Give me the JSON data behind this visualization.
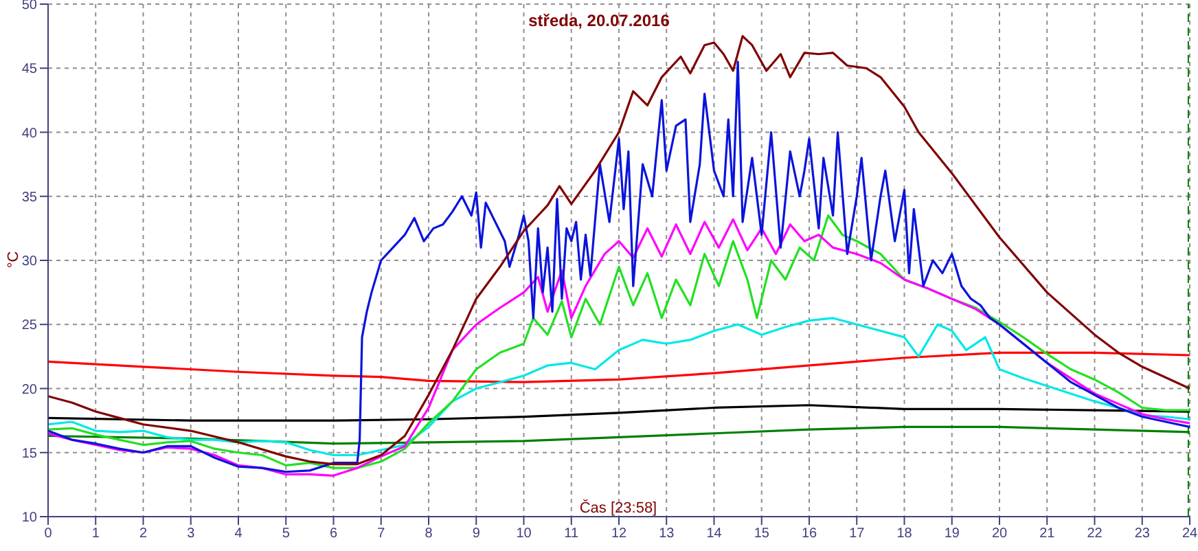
{
  "chart_data": {
    "type": "line",
    "title": "středa, 20.07.2016",
    "xlabel": "Čas [23:58]",
    "ylabel": "°C",
    "xlim": [
      0,
      24
    ],
    "xticks": [
      0,
      1,
      2,
      3,
      4,
      5,
      6,
      7,
      8,
      9,
      10,
      11,
      12,
      13,
      14,
      15,
      16,
      17,
      18,
      19,
      20,
      21,
      22,
      23,
      24
    ],
    "ylim": [
      10,
      50
    ],
    "yticks": [
      10,
      15,
      20,
      25,
      30,
      35,
      40,
      45,
      50
    ],
    "grid": true,
    "marker": "none",
    "line_style": "solid",
    "ref_lines": [
      {
        "axis": "x",
        "value": 23.97,
        "color": "#008000",
        "line_style": "dashed"
      }
    ],
    "series": [
      {
        "color": "#ff0000",
        "x": [
          0,
          2,
          4,
          6,
          7,
          8,
          10,
          12,
          14,
          16,
          18,
          20,
          22,
          24
        ],
        "values": [
          22.1,
          21.7,
          21.3,
          21.0,
          20.9,
          20.6,
          20.5,
          20.7,
          21.2,
          21.8,
          22.4,
          22.8,
          22.8,
          22.6
        ]
      },
      {
        "color": "#000000",
        "x": [
          0,
          3,
          6,
          8,
          10,
          12,
          14,
          16,
          18,
          20,
          22,
          24
        ],
        "values": [
          17.7,
          17.5,
          17.5,
          17.6,
          17.8,
          18.1,
          18.5,
          18.7,
          18.4,
          18.4,
          18.3,
          18.2
        ]
      },
      {
        "color": "#008000",
        "x": [
          0,
          3,
          6,
          8,
          10,
          12,
          14,
          16,
          18,
          20,
          22,
          24
        ],
        "values": [
          16.3,
          16.1,
          15.7,
          15.8,
          15.9,
          16.2,
          16.5,
          16.8,
          17.0,
          17.0,
          16.8,
          16.6
        ]
      },
      {
        "color": "#00e8e8",
        "x": [
          0,
          0.5,
          1,
          1.5,
          2,
          2.5,
          3,
          3.5,
          4,
          4.5,
          5,
          5.5,
          6,
          6.5,
          7,
          7.5,
          8,
          8.5,
          9,
          9.5,
          10,
          10.5,
          11,
          11.5,
          12,
          12.5,
          13,
          13.5,
          14,
          14.5,
          15,
          15.5,
          16,
          16.5,
          17,
          17.5,
          18,
          18.3,
          18.7,
          19,
          19.3,
          19.7,
          20,
          20.5,
          21,
          21.5,
          22,
          22.5,
          23,
          23.5,
          24
        ],
        "values": [
          17.2,
          17.4,
          16.7,
          16.6,
          16.7,
          16.2,
          16.0,
          16.0,
          15.8,
          15.9,
          15.8,
          15.2,
          14.8,
          14.8,
          15.2,
          15.6,
          17.0,
          19.0,
          20.0,
          20.5,
          21.0,
          21.8,
          22.0,
          21.5,
          23.0,
          23.8,
          23.5,
          23.8,
          24.5,
          25.0,
          24.2,
          24.8,
          25.3,
          25.5,
          25.0,
          24.5,
          24.0,
          22.5,
          25.0,
          24.5,
          23.0,
          24.0,
          21.5,
          20.8,
          20.2,
          19.6,
          19.0,
          18.5,
          17.9,
          17.8,
          17.6
        ]
      },
      {
        "color": "#22e022",
        "x": [
          0,
          0.5,
          1,
          1.5,
          2,
          2.5,
          3,
          3.5,
          4,
          4.5,
          5,
          5.5,
          6,
          6.5,
          7,
          7.5,
          8,
          8.5,
          9,
          9.5,
          10,
          10.2,
          10.5,
          10.8,
          11,
          11.3,
          11.6,
          12,
          12.3,
          12.6,
          12.9,
          13.2,
          13.5,
          13.8,
          14.1,
          14.4,
          14.7,
          14.9,
          15.2,
          15.5,
          15.8,
          16.1,
          16.4,
          16.7,
          17,
          17.5,
          18,
          18.5,
          19,
          19.5,
          20,
          20.5,
          21,
          21.5,
          22,
          22.5,
          23,
          23.5,
          24
        ],
        "values": [
          16.8,
          16.9,
          16.4,
          16.0,
          15.6,
          15.8,
          15.9,
          15.3,
          15.0,
          14.8,
          14.0,
          14.2,
          13.8,
          13.8,
          14.3,
          15.3,
          17.3,
          19.0,
          21.5,
          22.8,
          23.5,
          25.5,
          24.2,
          26.8,
          24.0,
          27.0,
          25.0,
          29.5,
          26.5,
          29.0,
          25.5,
          28.5,
          26.5,
          30.5,
          28.0,
          31.5,
          28.5,
          25.5,
          30.0,
          28.5,
          31.0,
          30.0,
          33.5,
          32.0,
          31.5,
          30.5,
          28.5,
          27.8,
          27.0,
          26.3,
          25.2,
          24.0,
          22.7,
          21.5,
          20.7,
          19.7,
          18.5,
          18.3,
          18.3
        ]
      },
      {
        "color": "#ff00ff",
        "x": [
          0,
          0.5,
          1,
          1.5,
          2,
          2.5,
          3,
          3.5,
          4,
          4.5,
          5,
          5.5,
          6,
          6.5,
          7,
          7.5,
          8,
          8.5,
          9,
          9.5,
          10,
          10.3,
          10.5,
          10.8,
          11,
          11.3,
          11.7,
          12,
          12.3,
          12.6,
          12.9,
          13.2,
          13.5,
          13.8,
          14.1,
          14.4,
          14.7,
          15,
          15.3,
          15.6,
          15.9,
          16.2,
          16.5,
          17,
          17.5,
          18,
          18.5,
          19,
          19.5,
          20,
          20.5,
          21,
          21.5,
          22,
          22.5,
          23,
          23.5,
          24
        ],
        "values": [
          16.5,
          16.0,
          15.6,
          15.2,
          15.0,
          15.4,
          15.3,
          14.8,
          14.0,
          13.8,
          13.3,
          13.3,
          13.2,
          13.8,
          14.7,
          15.5,
          18.5,
          23.0,
          25.0,
          26.3,
          27.5,
          28.7,
          26.0,
          29.2,
          25.5,
          28.0,
          30.5,
          31.5,
          30.2,
          32.5,
          30.3,
          32.8,
          30.5,
          33.0,
          31.0,
          33.2,
          30.8,
          32.5,
          30.5,
          32.8,
          31.5,
          32.0,
          31.0,
          30.5,
          29.8,
          28.5,
          27.8,
          27.0,
          26.2,
          25.0,
          23.5,
          22.0,
          20.8,
          19.6,
          18.8,
          18.0,
          17.6,
          17.3
        ]
      },
      {
        "color": "#0a14dc",
        "x": [
          0,
          0.5,
          1,
          1.5,
          2,
          2.5,
          3,
          3.5,
          4,
          4.5,
          5,
          5.5,
          6,
          6.5,
          6.55,
          6.6,
          6.7,
          6.8,
          7,
          7.2,
          7.5,
          7.7,
          7.9,
          8.1,
          8.3,
          8.5,
          8.7,
          8.9,
          9,
          9.1,
          9.2,
          9.4,
          9.6,
          9.7,
          9.9,
          10,
          10.1,
          10.2,
          10.3,
          10.4,
          10.5,
          10.6,
          10.7,
          10.8,
          10.9,
          11,
          11.1,
          11.2,
          11.3,
          11.4,
          11.6,
          11.8,
          12,
          12.1,
          12.2,
          12.3,
          12.5,
          12.7,
          12.9,
          13,
          13.2,
          13.4,
          13.5,
          13.7,
          13.8,
          14,
          14.2,
          14.3,
          14.4,
          14.5,
          14.6,
          14.8,
          15,
          15.2,
          15.4,
          15.6,
          15.8,
          15.9,
          16,
          16.2,
          16.3,
          16.5,
          16.6,
          16.8,
          17,
          17.1,
          17.3,
          17.5,
          17.6,
          17.8,
          18,
          18.1,
          18.2,
          18.4,
          18.6,
          18.8,
          19,
          19.2,
          19.4,
          19.6,
          19.8,
          20,
          20.5,
          21,
          21.5,
          22,
          22.5,
          23,
          23.5,
          24
        ],
        "values": [
          16.7,
          16.0,
          15.7,
          15.3,
          15.0,
          15.5,
          15.5,
          14.6,
          13.9,
          13.8,
          13.5,
          13.6,
          14.2,
          14.2,
          16.0,
          24.0,
          26.0,
          27.5,
          30.0,
          30.8,
          32.0,
          33.3,
          31.5,
          32.5,
          32.8,
          33.8,
          35.0,
          33.5,
          35.3,
          31.0,
          34.5,
          33.0,
          31.5,
          29.5,
          32.0,
          33.5,
          31.5,
          25.5,
          32.5,
          27.5,
          31.0,
          26.0,
          34.8,
          27.0,
          32.5,
          31.5,
          33.0,
          28.5,
          32.0,
          28.8,
          37.5,
          33.0,
          39.5,
          34.0,
          38.5,
          28.0,
          37.5,
          35.0,
          42.5,
          37.0,
          40.5,
          41.0,
          33.0,
          37.5,
          43.0,
          37.0,
          35.0,
          41.0,
          35.0,
          45.5,
          33.0,
          38.0,
          32.0,
          40.0,
          31.0,
          38.5,
          35.0,
          37.0,
          39.5,
          32.5,
          38.0,
          33.5,
          40.0,
          30.5,
          35.0,
          38.0,
          30.0,
          35.0,
          37.0,
          31.5,
          35.5,
          29.0,
          34.0,
          28.0,
          30.0,
          29.0,
          30.5,
          28.0,
          27.0,
          26.5,
          25.5,
          25.0,
          23.5,
          22.0,
          20.5,
          19.5,
          18.5,
          17.8,
          17.4,
          17.0
        ]
      },
      {
        "color": "#800000",
        "x": [
          0,
          0.5,
          1,
          1.5,
          2,
          3,
          4,
          5,
          5.5,
          6,
          6.5,
          7,
          7.5,
          8,
          8.5,
          9,
          9.5,
          10,
          10.3,
          10.5,
          10.75,
          11,
          11.5,
          12,
          12.3,
          12.6,
          12.9,
          13.3,
          13.5,
          13.8,
          14,
          14.2,
          14.4,
          14.6,
          14.8,
          15.1,
          15.4,
          15.6,
          15.9,
          16.2,
          16.5,
          16.8,
          17.2,
          17.5,
          18,
          18.3,
          19,
          20,
          21,
          22,
          22.5,
          23,
          24
        ],
        "values": [
          19.4,
          18.9,
          18.2,
          17.7,
          17.2,
          16.7,
          15.8,
          14.7,
          14.3,
          14.1,
          14.1,
          14.8,
          16.3,
          19.5,
          23.0,
          27.0,
          29.5,
          32.3,
          33.5,
          34.3,
          35.8,
          34.4,
          37.0,
          40.0,
          43.2,
          42.1,
          44.3,
          45.9,
          44.6,
          46.8,
          47.0,
          46.1,
          44.8,
          47.5,
          46.8,
          44.8,
          46.1,
          44.3,
          46.2,
          46.1,
          46.2,
          45.2,
          45.0,
          44.3,
          42.0,
          40.0,
          36.8,
          31.8,
          27.5,
          24.2,
          22.8,
          21.7,
          20.0
        ]
      }
    ]
  }
}
